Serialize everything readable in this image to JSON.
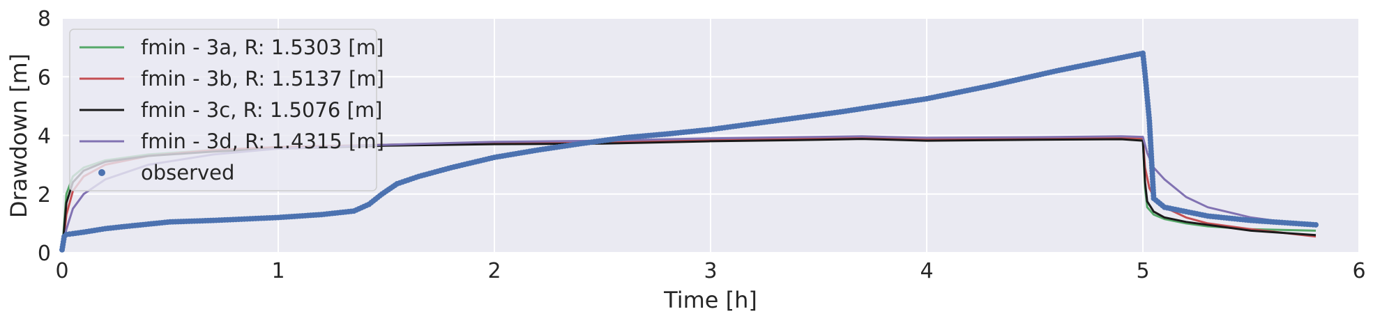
{
  "chart_data": {
    "type": "line",
    "xlabel": "Time [h]",
    "ylabel": "Drawdown [m]",
    "xlim": [
      0,
      6
    ],
    "ylim": [
      0,
      8
    ],
    "xticks": [
      0,
      1,
      2,
      3,
      4,
      5,
      6
    ],
    "yticks": [
      0,
      2,
      4,
      6,
      8
    ],
    "grid": true,
    "legend_position": "upper-left",
    "background": "#eaeaf2",
    "series": [
      {
        "name": "fmin - 3a, R: 1.5303 [m]",
        "style": "line",
        "color": "#55a868",
        "x": [
          0.005,
          0.02,
          0.05,
          0.1,
          0.2,
          0.4,
          0.7,
          1.0,
          1.5,
          2.0,
          2.5,
          3.0,
          3.5,
          3.7,
          4.0,
          4.5,
          4.9,
          5.0,
          5.01,
          5.02,
          5.05,
          5.1,
          5.2,
          5.3,
          5.5,
          5.8
        ],
        "values": [
          0.5,
          2.0,
          2.6,
          2.9,
          3.15,
          3.35,
          3.5,
          3.6,
          3.68,
          3.75,
          3.78,
          3.85,
          3.9,
          3.92,
          3.88,
          3.9,
          3.92,
          3.88,
          2.2,
          1.55,
          1.3,
          1.15,
          1.0,
          0.9,
          0.8,
          0.75
        ]
      },
      {
        "name": "fmin - 3b, R: 1.5137 [m]",
        "style": "line",
        "color": "#c44e52",
        "x": [
          0.005,
          0.02,
          0.05,
          0.1,
          0.2,
          0.4,
          0.7,
          1.0,
          1.5,
          2.0,
          2.5,
          3.0,
          3.5,
          3.7,
          4.0,
          4.5,
          4.9,
          5.0,
          5.01,
          5.03,
          5.06,
          5.1,
          5.2,
          5.3,
          5.5,
          5.8
        ],
        "values": [
          0.3,
          1.3,
          2.1,
          2.6,
          3.0,
          3.3,
          3.5,
          3.6,
          3.68,
          3.75,
          3.78,
          3.85,
          3.9,
          3.93,
          3.88,
          3.9,
          3.93,
          3.9,
          2.9,
          2.2,
          1.8,
          1.55,
          1.2,
          1.0,
          0.8,
          0.55
        ]
      },
      {
        "name": "fmin - 3c, R: 1.5076 [m]",
        "style": "line",
        "color": "#1a1a1a",
        "x": [
          0.005,
          0.02,
          0.05,
          0.1,
          0.2,
          0.4,
          0.7,
          1.0,
          1.5,
          2.0,
          2.5,
          3.0,
          3.5,
          3.7,
          4.0,
          4.5,
          4.9,
          5.0,
          5.01,
          5.02,
          5.05,
          5.1,
          5.2,
          5.3,
          5.5,
          5.8
        ],
        "values": [
          0.4,
          1.7,
          2.4,
          2.8,
          3.1,
          3.3,
          3.45,
          3.55,
          3.65,
          3.7,
          3.72,
          3.8,
          3.85,
          3.88,
          3.82,
          3.85,
          3.87,
          3.82,
          2.4,
          1.75,
          1.4,
          1.2,
          1.05,
          0.95,
          0.75,
          0.6
        ]
      },
      {
        "name": "fmin - 3d, R: 1.4315 [m]",
        "style": "line",
        "color": "#8172b2",
        "x": [
          0.005,
          0.02,
          0.05,
          0.1,
          0.2,
          0.4,
          0.7,
          1.0,
          1.5,
          2.0,
          2.5,
          3.0,
          3.5,
          3.7,
          4.0,
          4.5,
          4.9,
          5.0,
          5.02,
          5.05,
          5.1,
          5.2,
          5.3,
          5.5,
          5.8
        ],
        "values": [
          0.2,
          0.8,
          1.5,
          2.0,
          2.5,
          3.0,
          3.35,
          3.55,
          3.68,
          3.78,
          3.82,
          3.9,
          3.95,
          3.97,
          3.92,
          3.94,
          3.97,
          3.95,
          3.4,
          2.9,
          2.5,
          1.9,
          1.55,
          1.2,
          0.9
        ]
      },
      {
        "name": "observed",
        "style": "scatter",
        "color": "#4c72b0",
        "x": [
          0.0,
          0.01,
          0.02,
          0.05,
          0.1,
          0.2,
          0.3,
          0.5,
          0.7,
          1.0,
          1.2,
          1.35,
          1.42,
          1.48,
          1.55,
          1.65,
          1.8,
          2.0,
          2.2,
          2.4,
          2.6,
          2.8,
          3.0,
          3.3,
          3.6,
          4.0,
          4.3,
          4.6,
          5.0,
          5.01,
          5.02,
          5.03,
          5.05,
          5.1,
          5.2,
          5.3,
          5.5,
          5.8
        ],
        "values": [
          0.1,
          0.55,
          0.62,
          0.65,
          0.7,
          0.82,
          0.9,
          1.05,
          1.1,
          1.2,
          1.3,
          1.42,
          1.65,
          2.0,
          2.35,
          2.6,
          2.9,
          3.25,
          3.5,
          3.72,
          3.92,
          4.05,
          4.2,
          4.5,
          4.8,
          5.25,
          5.7,
          6.2,
          6.8,
          6.1,
          5.3,
          4.5,
          1.85,
          1.55,
          1.4,
          1.25,
          1.1,
          0.95
        ]
      }
    ]
  }
}
